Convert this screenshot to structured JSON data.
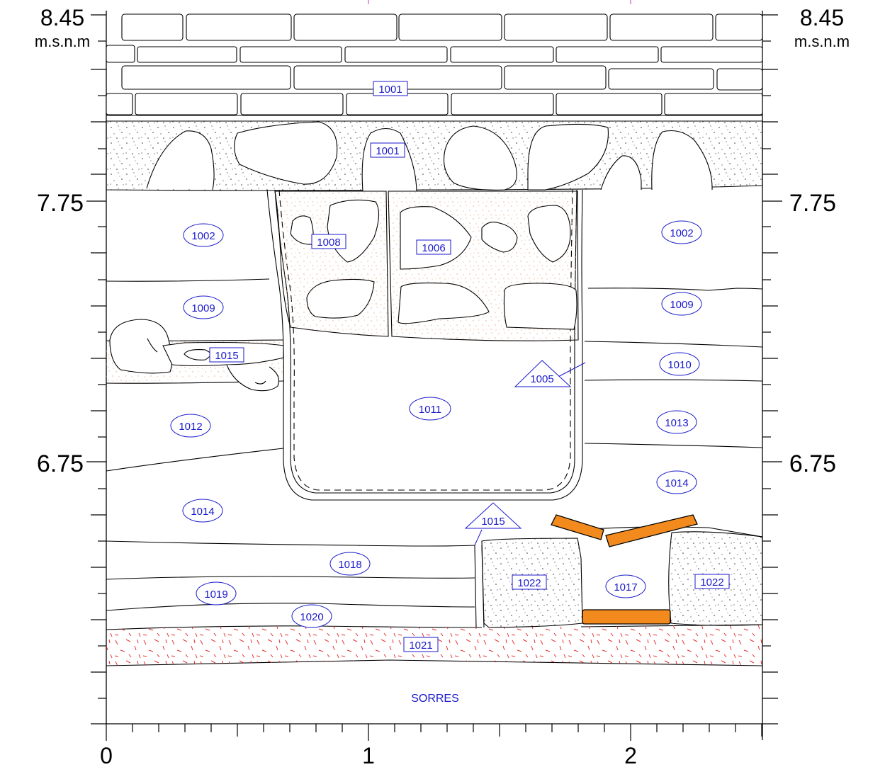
{
  "elevations": {
    "top": "8.45",
    "top_unit": "m.s.n.m",
    "mid": "7.75",
    "low": "6.75"
  },
  "x_axis": {
    "labels": [
      "0",
      "1",
      "2"
    ]
  },
  "units": {
    "u1001_brick": "1001",
    "u1001_stone": "1001",
    "u1002_left": "1002",
    "u1002_right": "1002",
    "u1005": "1005",
    "u1006": "1006",
    "u1008": "1008",
    "u1009_left": "1009",
    "u1009_right": "1009",
    "u1010": "1010",
    "u1011": "1011",
    "u1012": "1012",
    "u1013": "1013",
    "u1014_left": "1014",
    "u1014_right": "1014",
    "u1015_left": "1015",
    "u1015_mid": "1015",
    "u1017": "1017",
    "u1018": "1018",
    "u1019": "1019",
    "u1020": "1020",
    "u1021": "1021",
    "u1022_left": "1022",
    "u1022_right": "1022",
    "sorres": "SORRES"
  },
  "colors": {
    "label_blue": "#1a1acc",
    "wood_orange": "#f28a1e",
    "mortar_orange": "#e8a070",
    "clay_red": "#e53030",
    "line_black": "#000000"
  }
}
